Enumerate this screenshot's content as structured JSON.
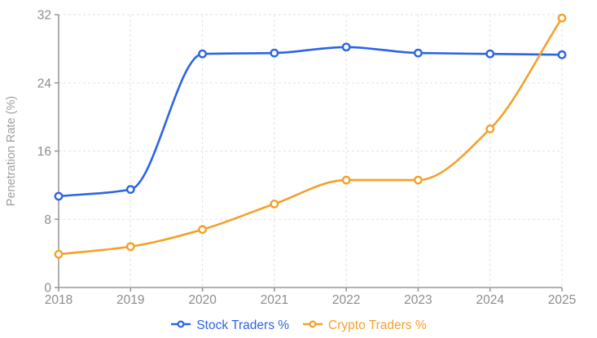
{
  "chart_data": {
    "type": "line",
    "title": "",
    "xlabel": "",
    "ylabel": "Penetration Rate (%)",
    "categories": [
      "2018",
      "2019",
      "2020",
      "2021",
      "2022",
      "2023",
      "2024",
      "2025"
    ],
    "series": [
      {
        "name": "Stock Traders %",
        "color": "#2c64e4",
        "values": [
          10.7,
          11.5,
          27.4,
          27.5,
          28.2,
          27.5,
          27.4,
          27.3
        ]
      },
      {
        "name": "Crypto Traders %",
        "color": "#f5a02b",
        "values": [
          3.9,
          4.8,
          6.8,
          9.8,
          12.6,
          12.6,
          18.6,
          31.6
        ]
      }
    ],
    "ylim": [
      0,
      32
    ],
    "ytick_step": 8,
    "yticks": [
      0,
      8,
      16,
      24,
      32
    ],
    "grid": true,
    "grid_style": "dashed",
    "smooth": true,
    "point_style": "open-circle",
    "legend_position": "bottom"
  },
  "style": {
    "grid_color": "#e2e2e2",
    "axis_color": "#999999",
    "tick_text_color": "#8c8c8c",
    "axis_label_color": "#9e9e9e",
    "background": "#ffffff"
  }
}
